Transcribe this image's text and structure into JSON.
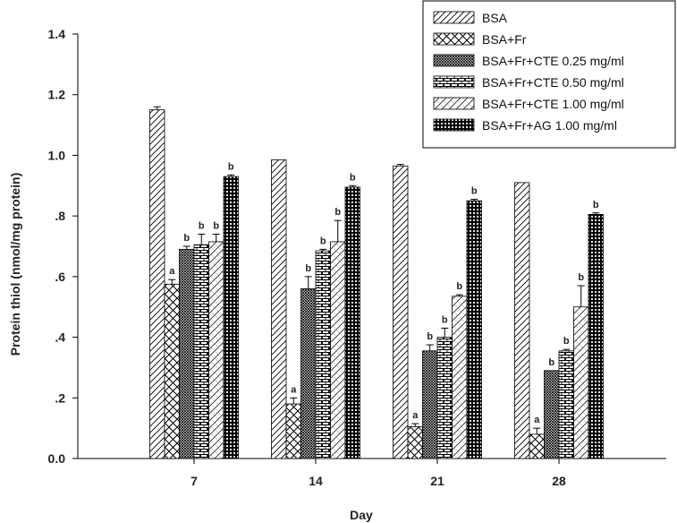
{
  "chart_data": {
    "type": "bar",
    "title": "",
    "xlabel": "Day",
    "ylabel": "Protein thiol (nmol/mg protein)",
    "ylim": [
      0,
      1.4
    ],
    "yticks": [
      0,
      0.2,
      0.4,
      0.6,
      0.8,
      1.0,
      1.2,
      1.4
    ],
    "ytick_labels": [
      "0.0",
      ".2",
      ".4",
      ".6",
      ".8",
      "1.0",
      "1.2",
      "1.4"
    ],
    "categories": [
      "7",
      "14",
      "21",
      "28"
    ],
    "legend_position": "top-right",
    "grid": false,
    "series": [
      {
        "name": "BSA",
        "pattern": "diag-right",
        "values": [
          1.15,
          0.985,
          0.965,
          0.91
        ],
        "errors": [
          0.01,
          0,
          0.005,
          0
        ],
        "labels": [
          "",
          "",
          "",
          ""
        ]
      },
      {
        "name": "BSA+Fr",
        "pattern": "crosshatch",
        "values": [
          0.575,
          0.18,
          0.105,
          0.08
        ],
        "errors": [
          0.015,
          0.02,
          0.01,
          0.02
        ],
        "labels": [
          "a",
          "a",
          "a",
          "a"
        ]
      },
      {
        "name": "BSA+Fr+CTE 0.25 mg/ml",
        "pattern": "dense-cross",
        "values": [
          0.69,
          0.56,
          0.355,
          0.29
        ],
        "errors": [
          0.01,
          0.04,
          0.02,
          0
        ],
        "labels": [
          "b",
          "b",
          "b",
          "b"
        ]
      },
      {
        "name": "BSA+Fr+CTE 0.50 mg/ml",
        "pattern": "brick",
        "values": [
          0.705,
          0.685,
          0.4,
          0.355
        ],
        "errors": [
          0.035,
          0.005,
          0.03,
          0.005
        ],
        "labels": [
          "b",
          "b",
          "b",
          "b"
        ]
      },
      {
        "name": "BSA+Fr+CTE 1.00 mg/ml",
        "pattern": "diag-cross-light",
        "values": [
          0.715,
          0.715,
          0.535,
          0.5
        ],
        "errors": [
          0.025,
          0.07,
          0.005,
          0.07
        ],
        "labels": [
          "b",
          "b",
          "b",
          "b"
        ]
      },
      {
        "name": "BSA+Fr+AG 1.00 mg/ml",
        "pattern": "dots",
        "values": [
          0.93,
          0.895,
          0.85,
          0.805
        ],
        "errors": [
          0.005,
          0.005,
          0.005,
          0.005
        ],
        "labels": [
          "b",
          "b",
          "b",
          "b"
        ]
      }
    ]
  }
}
